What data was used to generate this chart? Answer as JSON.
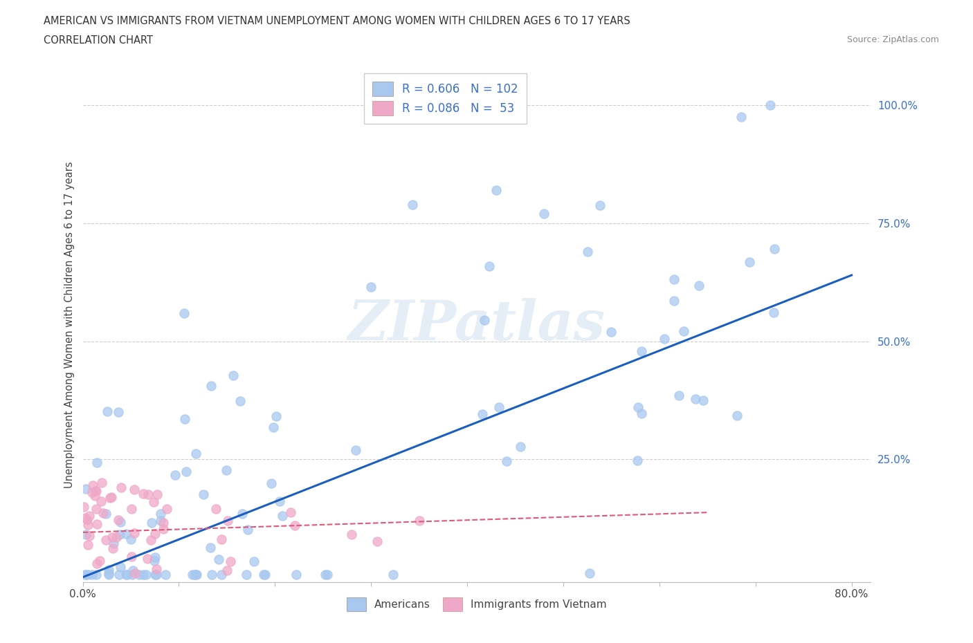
{
  "title_line1": "AMERICAN VS IMMIGRANTS FROM VIETNAM UNEMPLOYMENT AMONG WOMEN WITH CHILDREN AGES 6 TO 17 YEARS",
  "title_line2": "CORRELATION CHART",
  "source": "Source: ZipAtlas.com",
  "ylabel": "Unemployment Among Women with Children Ages 6 to 17 years",
  "xlim": [
    0.0,
    0.82
  ],
  "ylim": [
    -0.01,
    1.08
  ],
  "color_americans": "#a8c8f0",
  "color_vietnam": "#f0a8c8",
  "color_line_americans": "#1a5fbf",
  "color_line_vietnam": "#e05878",
  "background_color": "#ffffff",
  "grid_color": "#cccccc",
  "legend_R1": "R = 0.606",
  "legend_N1": "N = 102",
  "legend_R2": "R = 0.086",
  "legend_N2": "N =  53"
}
